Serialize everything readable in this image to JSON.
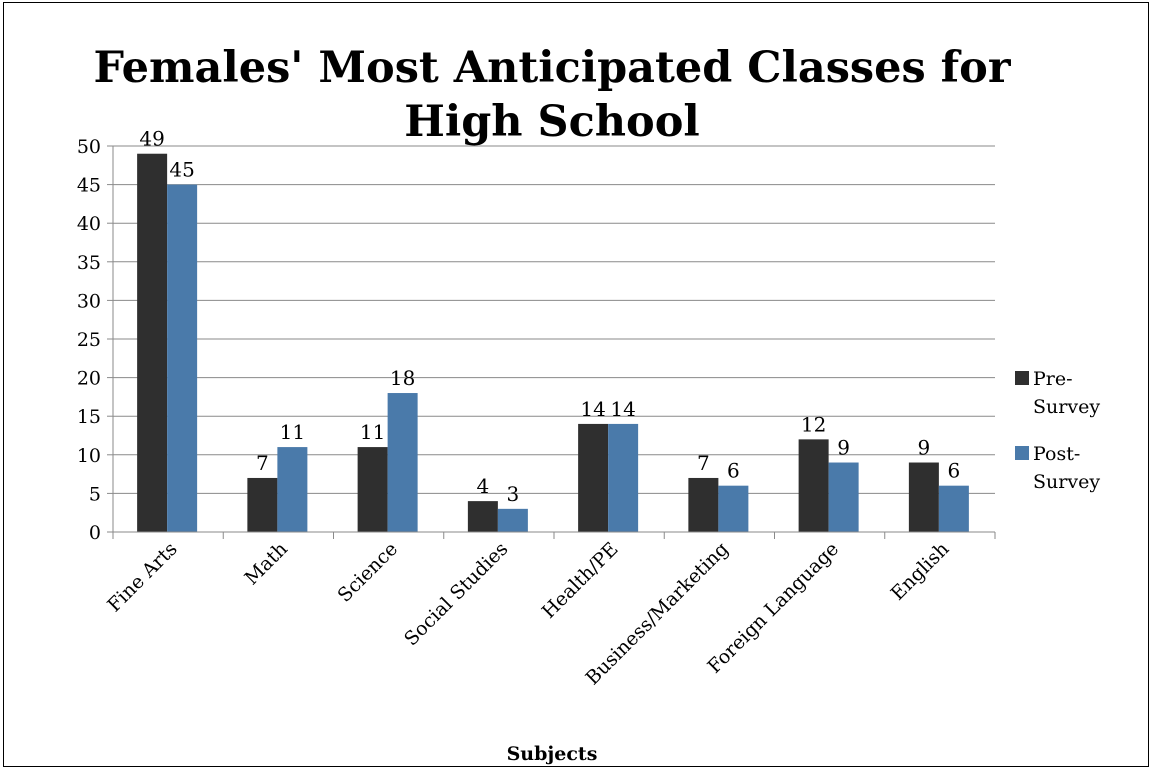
{
  "chart_data": {
    "type": "bar",
    "title_lines": [
      "Females' Most Anticipated Classes for",
      "High School"
    ],
    "xlabel": "Subjects",
    "ylabel": "",
    "ylim": [
      0,
      50
    ],
    "yticks": [
      "0",
      "5",
      "10",
      "15",
      "20",
      "25",
      "30",
      "35",
      "40",
      "45",
      "50"
    ],
    "categories": [
      "Fine Arts",
      "Math",
      "Science",
      "Social Studies",
      "Health/PE",
      "Business/Marketing",
      "Foreign Language",
      "English"
    ],
    "series": [
      {
        "name_lines": [
          "Pre-",
          "Survey"
        ],
        "color": "#2f2f2f",
        "values": [
          49,
          7,
          11,
          4,
          14,
          7,
          12,
          9
        ]
      },
      {
        "name_lines": [
          "Post-",
          "Survey"
        ],
        "color": "#4a7aaa",
        "values": [
          45,
          11,
          18,
          3,
          14,
          6,
          9,
          6
        ]
      }
    ],
    "data_labels": [
      [
        "49",
        "7",
        "11",
        "4",
        "14",
        "7",
        "12",
        "9"
      ],
      [
        "45",
        "11",
        "18",
        "3",
        "14",
        "6",
        "9",
        "6"
      ]
    ],
    "grid": true,
    "legend_position": "right"
  }
}
